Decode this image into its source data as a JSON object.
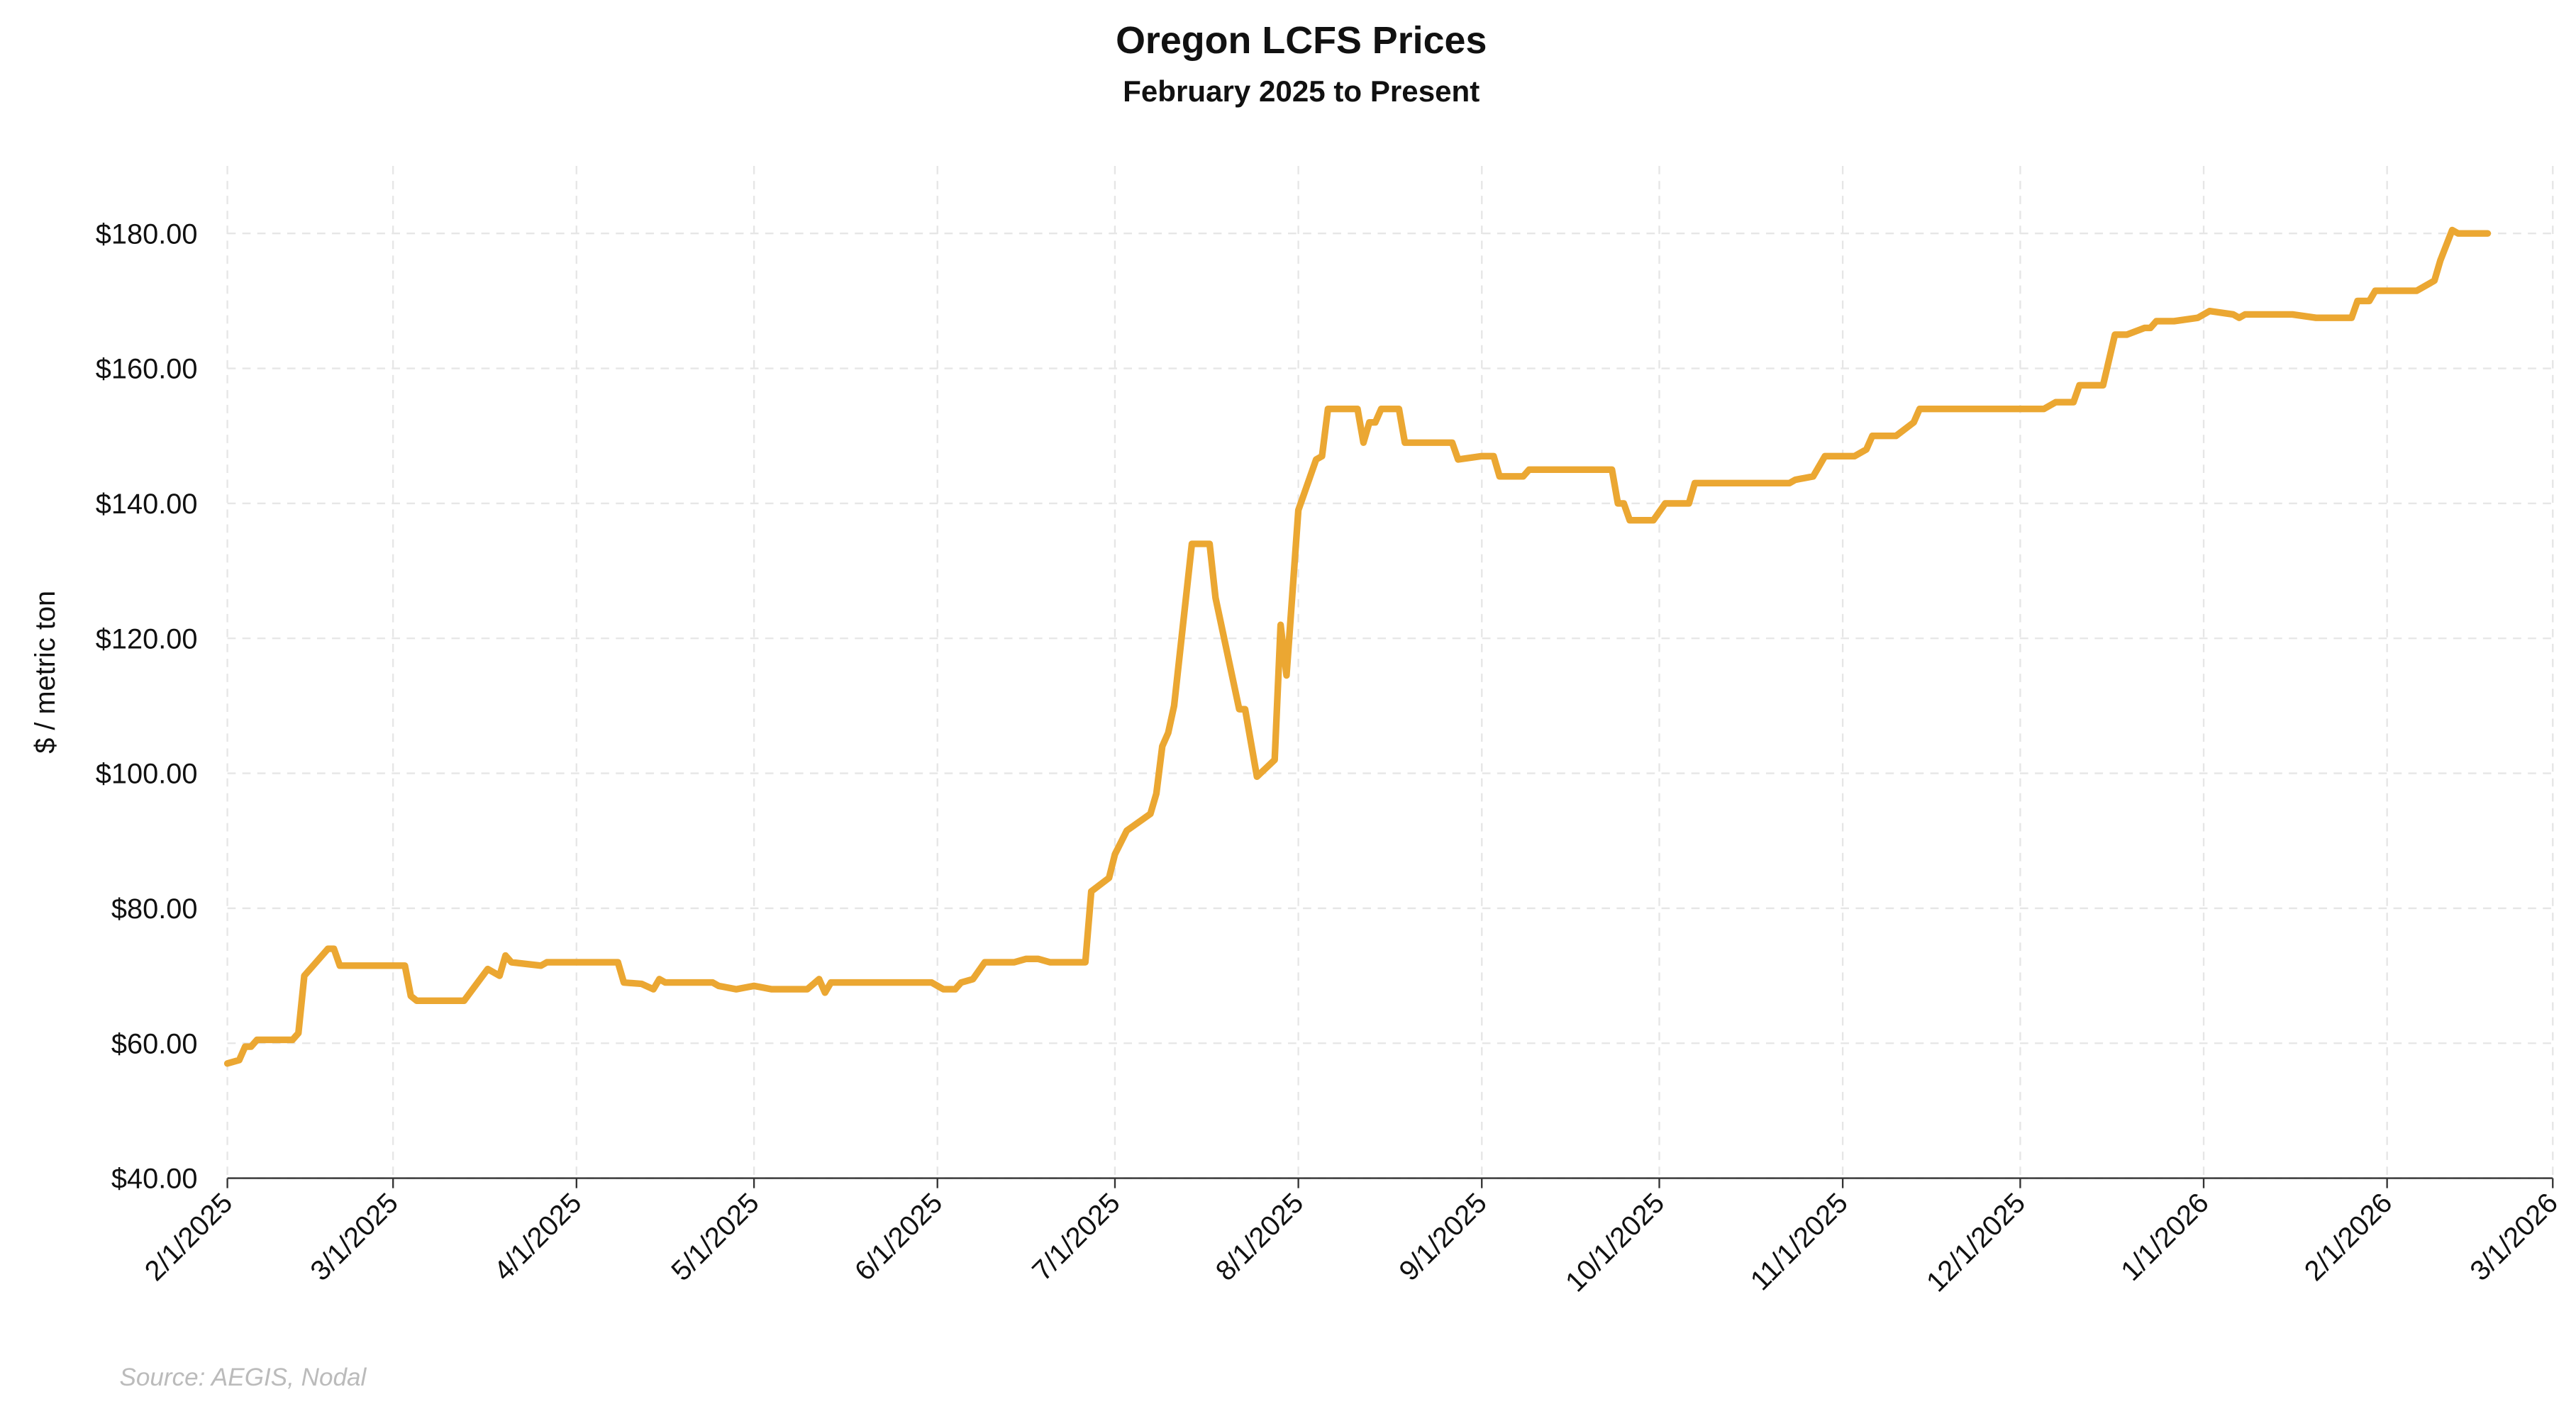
{
  "chart_data": {
    "type": "line",
    "title": "Oregon LCFS Prices",
    "subtitle": "February 2025 to Present",
    "y_label": "$ / metric ton",
    "source": "Source: AEGIS, Nodal",
    "grid": true,
    "xlim": [
      "2025-02-01",
      "2026-03-01"
    ],
    "xticks": [
      {
        "value": "2025-02-01",
        "label": "2/1/2025"
      },
      {
        "value": "2025-03-01",
        "label": "3/1/2025"
      },
      {
        "value": "2025-04-01",
        "label": "4/1/2025"
      },
      {
        "value": "2025-05-01",
        "label": "5/1/2025"
      },
      {
        "value": "2025-06-01",
        "label": "6/1/2025"
      },
      {
        "value": "2025-07-01",
        "label": "7/1/2025"
      },
      {
        "value": "2025-08-01",
        "label": "8/1/2025"
      },
      {
        "value": "2025-09-01",
        "label": "9/1/2025"
      },
      {
        "value": "2025-10-01",
        "label": "10/1/2025"
      },
      {
        "value": "2025-11-01",
        "label": "11/1/2025"
      },
      {
        "value": "2025-12-01",
        "label": "12/1/2025"
      },
      {
        "value": "2026-01-01",
        "label": "1/1/2026"
      },
      {
        "value": "2026-02-01",
        "label": "2/1/2026"
      },
      {
        "value": "2026-03-01",
        "label": "3/1/2026"
      }
    ],
    "ylim": [
      40,
      190
    ],
    "yticks": [
      {
        "value": 40,
        "label": "$40.00"
      },
      {
        "value": 60,
        "label": "$60.00"
      },
      {
        "value": 80,
        "label": "$80.00"
      },
      {
        "value": 100,
        "label": "$100.00"
      },
      {
        "value": 120,
        "label": "$120.00"
      },
      {
        "value": 140,
        "label": "$140.00"
      },
      {
        "value": 160,
        "label": "$160.00"
      },
      {
        "value": 180,
        "label": "$180.00"
      }
    ],
    "x": [
      "2025-02-01",
      "2025-02-03",
      "2025-02-04",
      "2025-02-05",
      "2025-02-06",
      "2025-02-12",
      "2025-02-13",
      "2025-02-14",
      "2025-02-16",
      "2025-02-18",
      "2025-02-19",
      "2025-02-20",
      "2025-03-03",
      "2025-03-04",
      "2025-03-05",
      "2025-03-13",
      "2025-03-17",
      "2025-03-19",
      "2025-03-20",
      "2025-03-21",
      "2025-03-26",
      "2025-03-27",
      "2025-04-08",
      "2025-04-09",
      "2025-04-12",
      "2025-04-14",
      "2025-04-15",
      "2025-04-16",
      "2025-04-24",
      "2025-04-25",
      "2025-04-28",
      "2025-05-01",
      "2025-05-04",
      "2025-05-10",
      "2025-05-12",
      "2025-05-13",
      "2025-05-14",
      "2025-05-31",
      "2025-06-02",
      "2025-06-04",
      "2025-06-05",
      "2025-06-07",
      "2025-06-09",
      "2025-06-14",
      "2025-06-16",
      "2025-06-18",
      "2025-06-20",
      "2025-06-26",
      "2025-06-27",
      "2025-06-30",
      "2025-07-01",
      "2025-07-03",
      "2025-07-07",
      "2025-07-08",
      "2025-07-09",
      "2025-07-10",
      "2025-07-11",
      "2025-07-14",
      "2025-07-17",
      "2025-07-18",
      "2025-07-22",
      "2025-07-23",
      "2025-07-25",
      "2025-07-28",
      "2025-07-29",
      "2025-07-30",
      "2025-08-01",
      "2025-08-04",
      "2025-08-05",
      "2025-08-06",
      "2025-08-11",
      "2025-08-12",
      "2025-08-13",
      "2025-08-14",
      "2025-08-15",
      "2025-08-18",
      "2025-08-19",
      "2025-08-27",
      "2025-08-28",
      "2025-09-01",
      "2025-09-03",
      "2025-09-04",
      "2025-09-08",
      "2025-09-09",
      "2025-09-23",
      "2025-09-24",
      "2025-09-25",
      "2025-09-26",
      "2025-09-30",
      "2025-10-02",
      "2025-10-06",
      "2025-10-07",
      "2025-10-23",
      "2025-10-24",
      "2025-10-27",
      "2025-10-29",
      "2025-11-03",
      "2025-11-05",
      "2025-11-06",
      "2025-11-10",
      "2025-11-13",
      "2025-11-14",
      "2025-12-05",
      "2025-12-07",
      "2025-12-10",
      "2025-12-11",
      "2025-12-15",
      "2025-12-17",
      "2025-12-19",
      "2025-12-22",
      "2025-12-23",
      "2025-12-24",
      "2025-12-27",
      "2025-12-31",
      "2026-01-02",
      "2026-01-06",
      "2026-01-07",
      "2026-01-08",
      "2026-01-16",
      "2026-01-20",
      "2026-01-26",
      "2026-01-27",
      "2026-01-29",
      "2026-01-30",
      "2026-02-06",
      "2026-02-09",
      "2026-02-10",
      "2026-02-12",
      "2026-02-13",
      "2026-02-18"
    ],
    "series": [
      {
        "name": "Oregon LCFS",
        "color": "#eba732",
        "values": [
          57,
          57.5,
          59.5,
          59.5,
          60.5,
          60.5,
          61.5,
          70,
          72,
          74,
          74,
          71.5,
          71.5,
          67,
          66.3,
          66.3,
          71,
          70,
          73,
          72,
          71.5,
          72,
          72,
          69,
          68.8,
          68,
          69.5,
          69,
          69,
          68.5,
          68,
          68.5,
          68,
          68,
          69.5,
          67.5,
          69,
          69,
          68,
          68,
          69,
          69.5,
          72,
          72,
          72.5,
          72.5,
          72,
          72,
          82.5,
          84.5,
          88,
          91.5,
          94,
          97,
          104,
          106,
          110,
          134,
          134,
          126,
          109.5,
          109.5,
          99.5,
          102,
          122,
          114.5,
          139,
          146.5,
          147,
          154,
          154,
          149,
          152,
          152,
          154,
          154,
          149,
          149,
          146.5,
          147,
          147,
          144,
          144,
          145,
          145,
          140,
          140,
          137.5,
          137.5,
          140,
          140,
          143,
          143,
          143.5,
          144,
          147,
          147,
          148,
          150,
          150,
          152,
          154,
          154,
          155,
          155,
          157.5,
          157.5,
          165,
          165,
          166,
          166,
          167,
          167,
          167.5,
          168.5,
          168,
          167.5,
          168,
          168,
          167.5,
          167.5,
          170,
          170,
          171.5,
          171.5,
          173,
          176,
          180.5,
          180,
          180
        ]
      }
    ]
  }
}
